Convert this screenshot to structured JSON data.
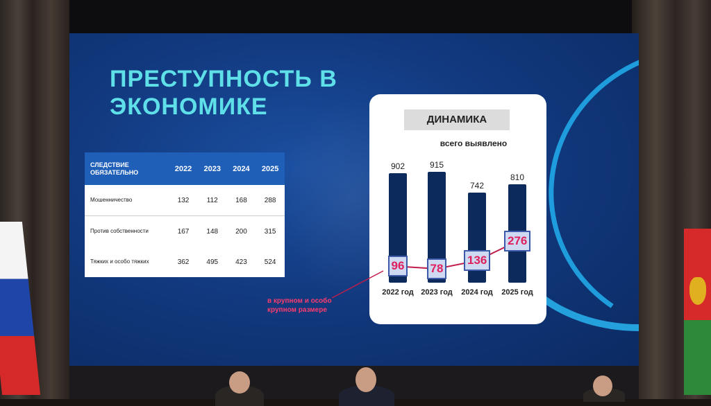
{
  "title": "ПРЕСТУПНОСТЬ В ЭКОНОМИКЕ",
  "table": {
    "headers": [
      "СЛЕДСТВИЕ ОБЯЗАТЕЛЬНО",
      "2022",
      "2023",
      "2024",
      "2025"
    ],
    "rows": [
      {
        "label": "Мошенничество",
        "values": [
          "132",
          "112",
          "168",
          "288"
        ]
      },
      {
        "label": "Против собственности",
        "values": [
          "167",
          "148",
          "200",
          "315"
        ]
      },
      {
        "label": "Тяжких и особо тяжких",
        "values": [
          "362",
          "495",
          "423",
          "524"
        ]
      }
    ]
  },
  "chart_data": {
    "type": "bar",
    "title": "ДИНАМИКА",
    "subtitle": "всего выявлено",
    "categories": [
      "2022 год",
      "2023 год",
      "2024 год",
      "2025 год"
    ],
    "series": [
      {
        "name": "всего выявлено",
        "values": [
          902,
          915,
          742,
          810
        ]
      },
      {
        "name": "в крупном и особо крупном размере",
        "values": [
          96,
          78,
          136,
          276
        ]
      }
    ],
    "value_labels_total": [
      "902",
      "915",
      "742",
      "810"
    ],
    "value_labels_large": [
      "96",
      "78",
      "136",
      "276"
    ],
    "annotation": "в крупном и особо крупном размере",
    "colors": {
      "bar": "#0d2a5c",
      "line": "#c01c4a",
      "highlight_text": "#e0205c"
    }
  }
}
